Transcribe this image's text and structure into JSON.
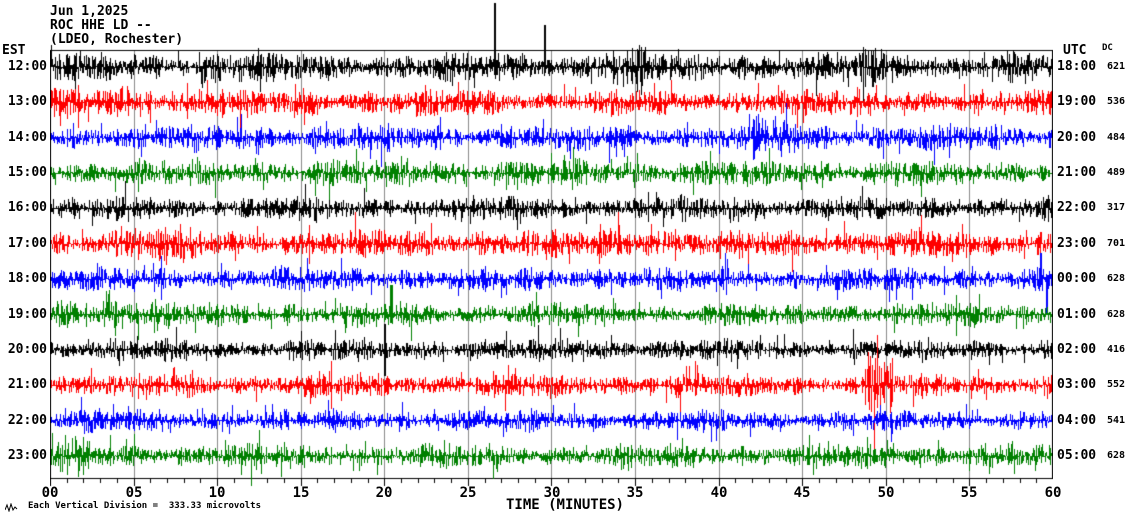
{
  "header": {
    "date": "Jun 1,2025",
    "station": "ROC HHE LD --",
    "location": "(LDEO, Rochester)"
  },
  "axes": {
    "left_label": "EST",
    "right_label": "UTC",
    "dc_label": "DC",
    "x_title": "TIME (MINUTES)",
    "x_ticks": [
      "00",
      "05",
      "10",
      "15",
      "20",
      "25",
      "30",
      "35",
      "40",
      "45",
      "50",
      "55",
      "60"
    ]
  },
  "footer": {
    "note": "Each Vertical Division =  333.33 microvolts"
  },
  "chart_data": {
    "type": "line",
    "subtype": "helicorder-seismogram",
    "station": "ROC HHE LD",
    "network_note": "LDEO, Rochester",
    "date": "Jun 1,2025",
    "x_range_minutes": [
      0,
      60
    ],
    "grid_interval_minutes": 5,
    "minor_tick_minutes": 1,
    "vertical_division_microvolts": 333.33,
    "grid_color": "#888888",
    "trace_color_cycle": [
      "#000000",
      "#ff0000",
      "#0000ff",
      "#008000"
    ],
    "rows": [
      {
        "est": "12:00",
        "utc": "18:00",
        "dc": "621",
        "color": "#000000",
        "amp": 12
      },
      {
        "est": "13:00",
        "utc": "19:00",
        "dc": "536",
        "color": "#ff0000",
        "amp": 11
      },
      {
        "est": "14:00",
        "utc": "20:00",
        "dc": "484",
        "color": "#0000ff",
        "amp": 11
      },
      {
        "est": "15:00",
        "utc": "21:00",
        "dc": "489",
        "color": "#008000",
        "amp": 11
      },
      {
        "est": "16:00",
        "utc": "22:00",
        "dc": "317",
        "color": "#000000",
        "amp": 10
      },
      {
        "est": "17:00",
        "utc": "23:00",
        "dc": "701",
        "color": "#ff0000",
        "amp": 12
      },
      {
        "est": "18:00",
        "utc": "00:00",
        "dc": "628",
        "color": "#0000ff",
        "amp": 10
      },
      {
        "est": "19:00",
        "utc": "01:00",
        "dc": "628",
        "color": "#008000",
        "amp": 10
      },
      {
        "est": "20:00",
        "utc": "02:00",
        "dc": "416",
        "color": "#000000",
        "amp": 9
      },
      {
        "est": "21:00",
        "utc": "03:00",
        "dc": "552",
        "color": "#ff0000",
        "amp": 10
      },
      {
        "est": "22:00",
        "utc": "04:00",
        "dc": "541",
        "color": "#0000ff",
        "amp": 9
      },
      {
        "est": "23:00",
        "utc": "05:00",
        "dc": "628",
        "color": "#008000",
        "amp": 10
      }
    ],
    "events": [
      {
        "row": 1,
        "type": "spike",
        "minute": 26.6,
        "up": 64,
        "down": 8
      },
      {
        "row": 1,
        "type": "spike",
        "minute": 29.6,
        "up": 42,
        "down": 6
      },
      {
        "row": 1,
        "type": "burst",
        "start": 8.8,
        "end": 10.2,
        "mult": 1.5
      },
      {
        "row": 1,
        "type": "burst",
        "start": 33.0,
        "end": 35.5,
        "mult": 1.7
      },
      {
        "row": 1,
        "type": "burst",
        "start": 40.3,
        "end": 41.8,
        "mult": 1.5
      },
      {
        "row": 1,
        "type": "burst",
        "start": 48.3,
        "end": 49.8,
        "mult": 1.5
      },
      {
        "row": 2,
        "type": "burst",
        "start": 3.5,
        "end": 6.0,
        "mult": 1.4
      },
      {
        "row": 2,
        "type": "burst",
        "start": 9.0,
        "end": 10.5,
        "mult": 1.35
      },
      {
        "row": 2,
        "type": "burst",
        "start": 14.0,
        "end": 16.0,
        "mult": 1.3
      },
      {
        "row": 3,
        "type": "burst",
        "start": 41.8,
        "end": 44.8,
        "mult": 1.6
      },
      {
        "row": 6,
        "type": "burst",
        "start": 4.5,
        "end": 9.0,
        "mult": 1.25
      },
      {
        "row": 6,
        "type": "burst",
        "start": 32.5,
        "end": 37.5,
        "mult": 1.4
      },
      {
        "row": 7,
        "type": "spike",
        "minute": 59.25,
        "up": 26,
        "down": 6
      },
      {
        "row": 7,
        "type": "spike",
        "minute": 59.6,
        "up": 4,
        "down": 34
      },
      {
        "row": 8,
        "type": "burst",
        "start": 0.3,
        "end": 2.2,
        "mult": 2.0
      },
      {
        "row": 8,
        "type": "burst",
        "start": 2.8,
        "end": 6.5,
        "mult": 1.5
      },
      {
        "row": 8,
        "type": "spike",
        "minute": 20.4,
        "up": 30,
        "down": 8
      },
      {
        "row": 9,
        "type": "spike",
        "minute": 20.0,
        "up": 26,
        "down": 26
      },
      {
        "row": 10,
        "type": "burst",
        "start": 48.7,
        "end": 50.4,
        "mult": 2.6
      },
      {
        "row": 11,
        "type": "burst",
        "start": 0.0,
        "end": 3.0,
        "mult": 1.3
      },
      {
        "row": 12,
        "type": "burst",
        "start": 0.5,
        "end": 2.5,
        "mult": 1.6
      }
    ]
  }
}
